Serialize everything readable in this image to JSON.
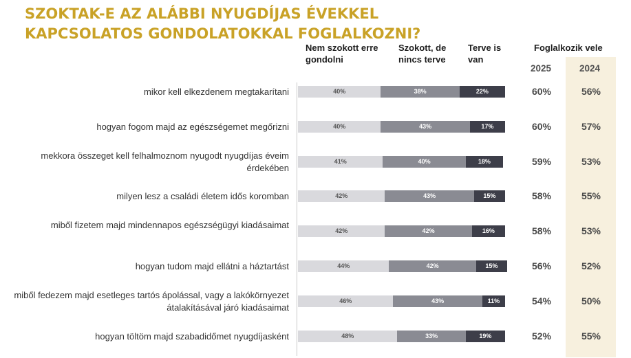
{
  "title": "SZOKTAK-E AZ ALÁBBI NYUGDÍJAS ÉVEKKEL KAPCSOLATOS GONDOLATOKKAL FOGLALKOZNI?",
  "headers": {
    "col1": "Nem szokott erre gondolni",
    "col2": "Szokott, de nincs terve",
    "col3": "Terve is van",
    "col4": "Foglalkozik vele",
    "year1": "2025",
    "year2": "2024"
  },
  "colors": {
    "s1": "#d9d9dd",
    "s2": "#8a8b93",
    "s3": "#3d3e49",
    "highlight": "#f7f0de",
    "title": "#c9a227"
  },
  "chart_data": {
    "type": "bar",
    "stacked": true,
    "orientation": "horizontal",
    "series": [
      {
        "name": "Nem szokott erre gondolni",
        "values": [
          40,
          40,
          41,
          42,
          42,
          44,
          46,
          48
        ]
      },
      {
        "name": "Szokott, de nincs terve",
        "values": [
          38,
          43,
          40,
          43,
          42,
          42,
          43,
          33
        ]
      },
      {
        "name": "Terve is van",
        "values": [
          22,
          17,
          18,
          15,
          16,
          15,
          11,
          19
        ]
      }
    ],
    "categories": [
      "mikor kell elkezdenem megtakarítani",
      "hogyan fogom majd az egészségemet megőrizni",
      "mekkora összeget kell felhalmoznom nyugodt nyugdíjas éveim érdekében",
      "milyen lesz a családi életem idős koromban",
      "miből fizetem majd mindennapos egészségügyi kiadásaimat",
      "hogyan tudom majd ellátni a háztartást",
      "miből fedezem majd esetleges tartós ápolással, vagy a lakókörnyezet átalakításával járó kiadásaimat",
      "hogyan töltöm majd szabadidőmet nyugdíjasként"
    ],
    "foglalkozik_2025": [
      60,
      60,
      59,
      58,
      58,
      56,
      54,
      52
    ],
    "foglalkozik_2024": [
      56,
      57,
      53,
      55,
      53,
      52,
      50,
      55
    ],
    "labels": {
      "s1": [
        "40%",
        "40%",
        "41%",
        "42%",
        "42%",
        "44%",
        "46%",
        "48%"
      ],
      "s2": [
        "38%",
        "43%",
        "40%",
        "43%",
        "42%",
        "42%",
        "43%",
        "33%"
      ],
      "s3": [
        "22%",
        "17%",
        "18%",
        "15%",
        "16%",
        "15%",
        "11%",
        "19%"
      ],
      "y2025": [
        "60%",
        "60%",
        "59%",
        "58%",
        "58%",
        "56%",
        "54%",
        "52%"
      ],
      "y2024": [
        "56%",
        "57%",
        "53%",
        "55%",
        "53%",
        "52%",
        "50%",
        "55%"
      ]
    }
  }
}
